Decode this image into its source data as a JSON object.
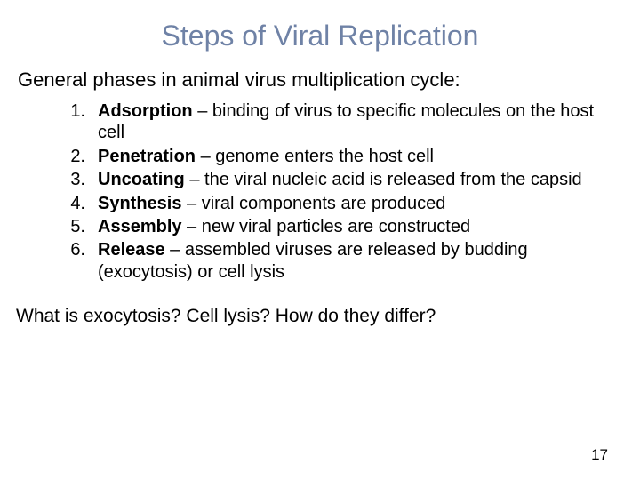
{
  "title_color": "#6f82a6",
  "text_color": "#000000",
  "title": "Steps of Viral Replication",
  "intro": "General phases in animal virus multiplication cycle:",
  "steps": [
    {
      "num": "1.",
      "head": "Adsorption",
      "tail": " – binding of virus to specific molecules on the host cell"
    },
    {
      "num": "2.",
      "head": "Penetration",
      "tail": " – genome enters the host cell"
    },
    {
      "num": "3.",
      "head": "Uncoating",
      "tail": " – the viral nucleic acid is released from the capsid"
    },
    {
      "num": "4.",
      "head": "Synthesis",
      "tail": " – viral components are produced"
    },
    {
      "num": "5.",
      "head": "Assembly",
      "tail": " – new viral particles are constructed"
    },
    {
      "num": "6.",
      "head": "Release",
      "tail": " – assembled viruses are released by budding (exocytosis) or cell lysis"
    }
  ],
  "question": "What is exocytosis?  Cell lysis?  How do they differ?",
  "page_number": "17"
}
